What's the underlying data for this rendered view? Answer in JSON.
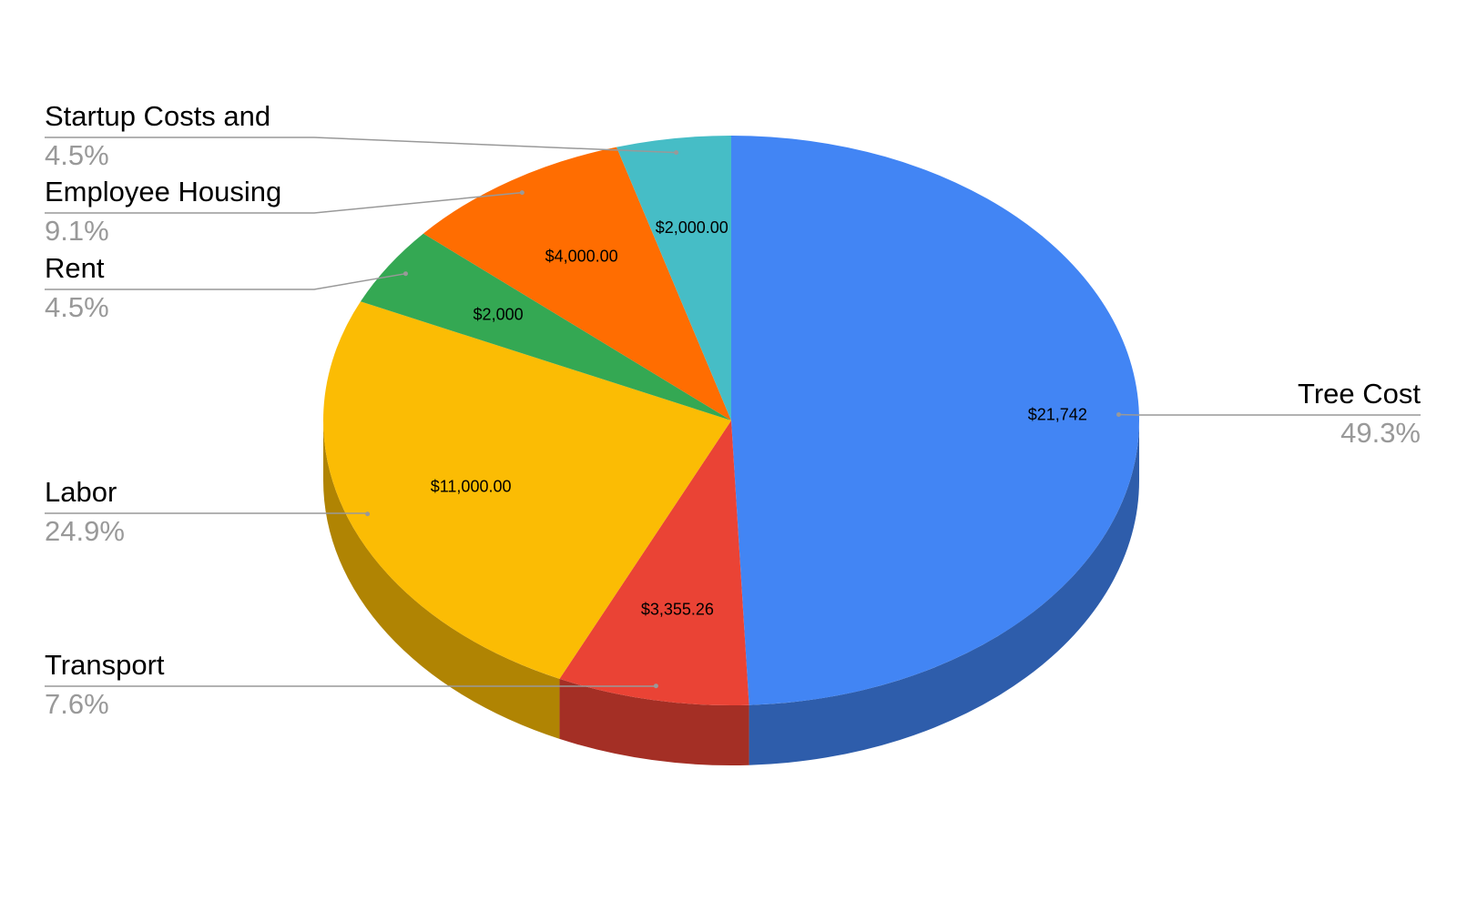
{
  "chart_data": {
    "type": "pie",
    "categories": [
      "Tree Cost",
      "Transport",
      "Labor",
      "Rent",
      "Employee Housing",
      "Startup Costs and"
    ],
    "values": [
      21742,
      3355.26,
      11000,
      2000,
      4000,
      2000
    ],
    "value_labels": [
      "$21,742",
      "$3,355.26",
      "$11,000.00",
      "$2,000",
      "$4,000.00",
      "$2,000.00"
    ],
    "percent_labels": [
      "49.3%",
      "7.6%",
      "24.9%",
      "4.5%",
      "9.1%",
      "4.5%"
    ],
    "colors": [
      "#4285f4",
      "#ea4335",
      "#fbbc04",
      "#34a853",
      "#ff6d01",
      "#46bdc6"
    ],
    "three_d": true
  }
}
